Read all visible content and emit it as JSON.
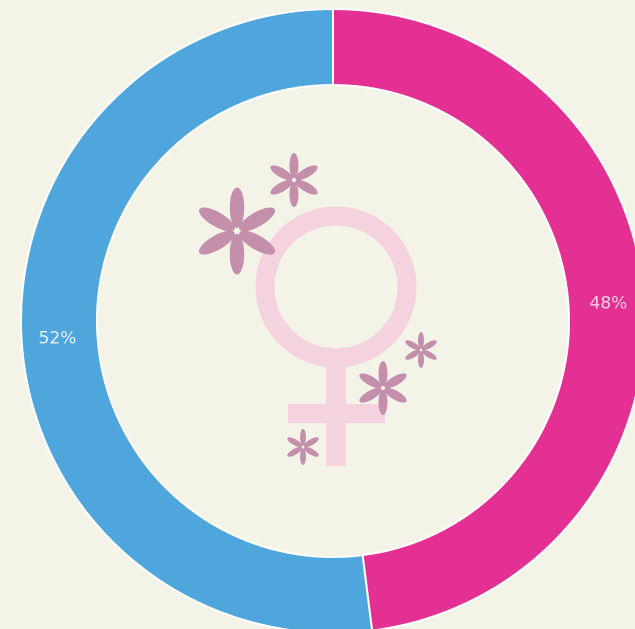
{
  "chart_data": {
    "type": "donut",
    "values": [
      48,
      52
    ],
    "value_labels": [
      "48%",
      "52%"
    ],
    "colors": [
      "#e42f93",
      "#4fa6dc"
    ],
    "label_colors": [
      "#f7d0e4",
      "#e8f2fa"
    ]
  }
}
